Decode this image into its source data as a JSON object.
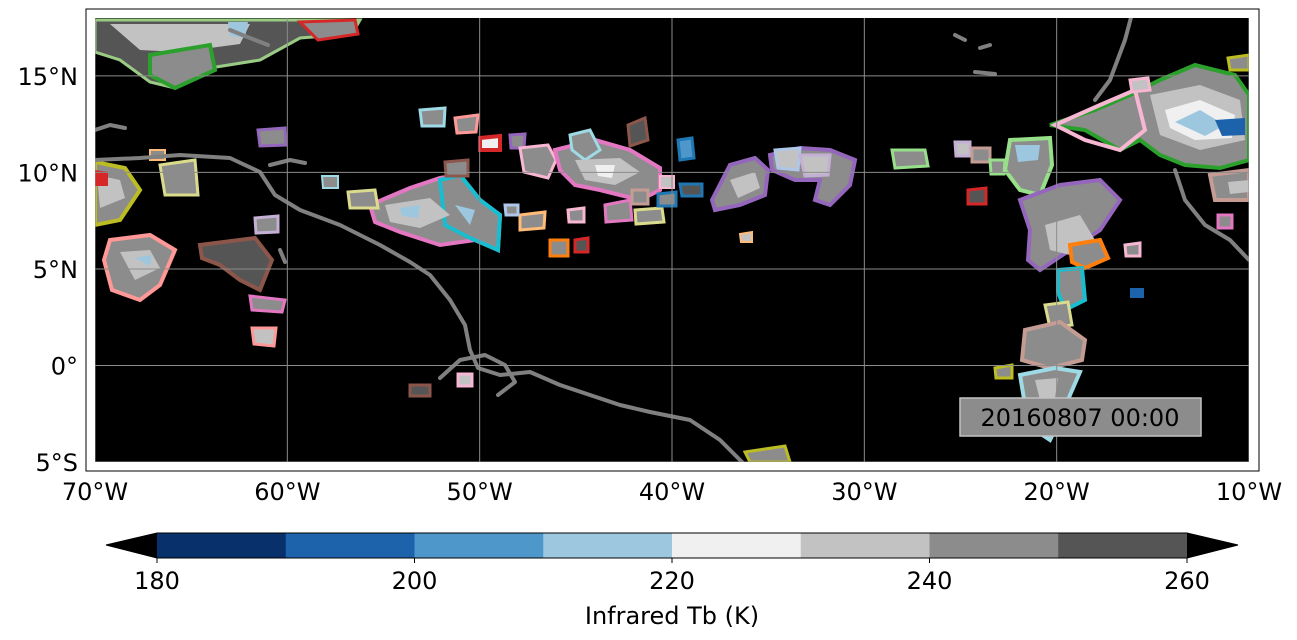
{
  "map": {
    "timestamp": "20160807 00:00",
    "lon_labels": [
      "70°W",
      "60°W",
      "50°W",
      "40°W",
      "30°W",
      "20°W",
      "10°W"
    ],
    "lat_labels": [
      "15°N",
      "10°N",
      "5°N",
      "0°",
      "5°S"
    ],
    "lon_range": [
      -70,
      -10
    ],
    "lat_range": [
      -5,
      18
    ],
    "colors": {
      "background": "#000000",
      "coastline": "#808080",
      "gridline": "#8c8c8c"
    }
  },
  "colorbar": {
    "label": "Infrared Tb (K)",
    "ticks": [
      "180",
      "200",
      "220",
      "240",
      "260"
    ],
    "range": [
      180,
      260
    ],
    "bins": [
      {
        "from": 180,
        "to": 190,
        "color": "#08306b"
      },
      {
        "from": 190,
        "to": 200,
        "color": "#1c63ab"
      },
      {
        "from": 200,
        "to": 210,
        "color": "#4d97cb"
      },
      {
        "from": 210,
        "to": 220,
        "color": "#9dc7df"
      },
      {
        "from": 220,
        "to": 230,
        "color": "#f0f0f0"
      },
      {
        "from": 230,
        "to": 240,
        "color": "#c2c2c2"
      },
      {
        "from": 240,
        "to": 250,
        "color": "#8c8c8c"
      },
      {
        "from": 250,
        "to": 260,
        "color": "#555555"
      }
    ],
    "under_color": "#000000",
    "over_color": "#000000"
  }
}
